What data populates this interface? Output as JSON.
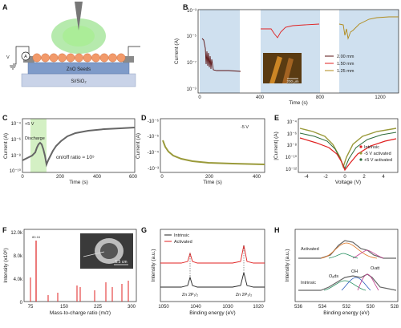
{
  "panels": {
    "A": {
      "letter": "A",
      "v_label": "V",
      "ammeter": "A",
      "seeds_label": "ZnO Seeds",
      "substrate_label": "Si/SiO₂"
    },
    "B": {
      "letter": "B",
      "ylabel": "Current (A)",
      "xlabel": "Time (s)",
      "y_ticks": [
        "10⁻³",
        "10⁻⁵",
        "10⁻⁷",
        "10⁻⁹"
      ],
      "x_ticks": [
        "0",
        "400",
        "800",
        "1200"
      ],
      "legend": [
        "2.00 mm",
        "1.50 mm",
        "1.25 mm"
      ],
      "scale_bar": "200 μm",
      "colors": {
        "a": "#5a1010",
        "b": "#e02020",
        "c": "#b08a1a"
      }
    },
    "C": {
      "letter": "C",
      "ylabel": "Current (A)",
      "xlabel": "Time (s)",
      "bias": "+5 V",
      "discharge": "Discharge",
      "ratio_text": "on/off ratio ≈ 10⁵",
      "y_ticks": [
        "10⁻⁴",
        "10⁻⁶",
        "10⁻⁸",
        "10⁻¹⁰"
      ],
      "x_ticks": [
        "0",
        "200",
        "400",
        "600"
      ]
    },
    "D": {
      "letter": "D",
      "ylabel": "Current (A)",
      "xlabel": "Time (s)",
      "bias": "-5 V",
      "y_ticks": [
        "-10⁻⁶",
        "-10⁻⁵",
        "-10⁻⁴",
        "-10⁻³"
      ],
      "x_ticks": [
        "0",
        "200",
        "400"
      ]
    },
    "E": {
      "letter": "E",
      "ylabel": "|Current| (A)",
      "xlabel": "Voltage (V)",
      "legend": [
        "Intrinsic",
        "-5 V activated",
        "+5 V activated"
      ],
      "y_ticks": [
        "10⁻⁴",
        "10⁻⁶",
        "10⁻⁸",
        "10⁻¹⁰",
        "10⁻¹²"
      ],
      "x_ticks": [
        "-4",
        "-2",
        "0",
        "2",
        "4"
      ]
    },
    "F": {
      "letter": "F",
      "ylabel": "Intensity (x10⁶)",
      "xlabel": "Mass-to-charge ratio (m/z)",
      "y_ticks": [
        "0",
        "4.0k",
        "8.0k",
        "12.0k"
      ],
      "x_ticks": [
        "75",
        "150",
        "225",
        "300"
      ],
      "scale_bar": "1.5 cm",
      "peak_main": "80.16"
    },
    "G": {
      "letter": "G",
      "ylabel": "Intensity (a.u.)",
      "xlabel": "Binding energy (eV)",
      "legend": [
        "Intrinsic",
        "Activated"
      ],
      "label_left": "Zn 2P₁/₂",
      "label_right": "Zn 2P₃/₂",
      "x_ticks": [
        "1050",
        "1040",
        "1030",
        "1020"
      ]
    },
    "H": {
      "letter": "H",
      "ylabel": "Intensity (a.u.)",
      "xlabel": "Binding energy (eV)",
      "label_act": "Activated",
      "label_int": "Intrinsic",
      "label_oads": "Oₐds",
      "label_oh": "OH",
      "label_olatt": "Oₗatt",
      "x_ticks": [
        "536",
        "534",
        "532",
        "530",
        "528"
      ]
    }
  },
  "colors": {
    "black": "#111111",
    "red": "#e02020",
    "olive": "#9a9a3a",
    "green": "#2e6b3b",
    "bluebox": "#cfe0ef",
    "greenbox": "#d4f0c4"
  }
}
